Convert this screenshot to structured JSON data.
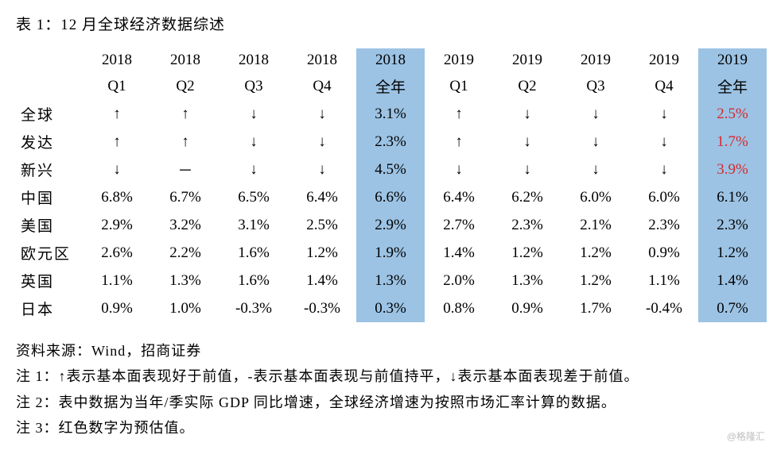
{
  "title": "表 1：12 月全球经济数据综述",
  "table": {
    "type": "table",
    "background_color": "#ffffff",
    "highlight_color": "#9cc3e4",
    "text_color": "#000000",
    "estimate_color": "#d6292c",
    "font_family": "SimSun",
    "cell_fontsize": 19,
    "arrows": {
      "up": "↑",
      "down": "↓",
      "flat": "－"
    },
    "header_years": [
      "2018",
      "2018",
      "2018",
      "2018",
      "2018",
      "2019",
      "2019",
      "2019",
      "2019",
      "2019"
    ],
    "header_periods": [
      "Q1",
      "Q2",
      "Q3",
      "Q4",
      "全年",
      "Q1",
      "Q2",
      "Q3",
      "Q4",
      "全年"
    ],
    "highlight_cols": [
      4,
      9
    ],
    "rows": [
      {
        "label": "全球",
        "cells": [
          "up",
          "up",
          "down",
          "down",
          "3.1%",
          "up",
          "down",
          "down",
          "down",
          "2.5%"
        ],
        "red": [
          9
        ]
      },
      {
        "label": "发达",
        "cells": [
          "up",
          "up",
          "down",
          "down",
          "2.3%",
          "up",
          "down",
          "down",
          "down",
          "1.7%"
        ],
        "red": [
          9
        ]
      },
      {
        "label": "新兴",
        "cells": [
          "down",
          "flat",
          "down",
          "down",
          "4.5%",
          "down",
          "down",
          "down",
          "down",
          "3.9%"
        ],
        "red": [
          9
        ]
      },
      {
        "label": "中国",
        "cells": [
          "6.8%",
          "6.7%",
          "6.5%",
          "6.4%",
          "6.6%",
          "6.4%",
          "6.2%",
          "6.0%",
          "6.0%",
          "6.1%"
        ],
        "red": []
      },
      {
        "label": "美国",
        "cells": [
          "2.9%",
          "3.2%",
          "3.1%",
          "2.5%",
          "2.9%",
          "2.7%",
          "2.3%",
          "2.1%",
          "2.3%",
          "2.3%"
        ],
        "red": []
      },
      {
        "label": "欧元区",
        "cells": [
          "2.6%",
          "2.2%",
          "1.6%",
          "1.2%",
          "1.9%",
          "1.4%",
          "1.2%",
          "1.2%",
          "0.9%",
          "1.2%"
        ],
        "red": []
      },
      {
        "label": "英国",
        "cells": [
          "1.1%",
          "1.3%",
          "1.6%",
          "1.4%",
          "1.3%",
          "2.0%",
          "1.3%",
          "1.2%",
          "1.1%",
          "1.4%"
        ],
        "red": []
      },
      {
        "label": "日本",
        "cells": [
          "0.9%",
          "1.0%",
          "-0.3%",
          "-0.3%",
          "0.3%",
          "0.8%",
          "0.9%",
          "1.7%",
          "-0.4%",
          "0.7%"
        ],
        "red": []
      }
    ]
  },
  "source": "资料来源：Wind，招商证券",
  "notes": [
    "注 1：↑表示基本面表现好于前值，-表示基本面表现与前值持平，↓表示基本面表现差于前值。",
    "注 2：表中数据为当年/季实际 GDP 同比增速，全球经济增速为按照市场汇率计算的数据。",
    "注 3：红色数字为预估值。"
  ],
  "watermark": "@格隆汇"
}
